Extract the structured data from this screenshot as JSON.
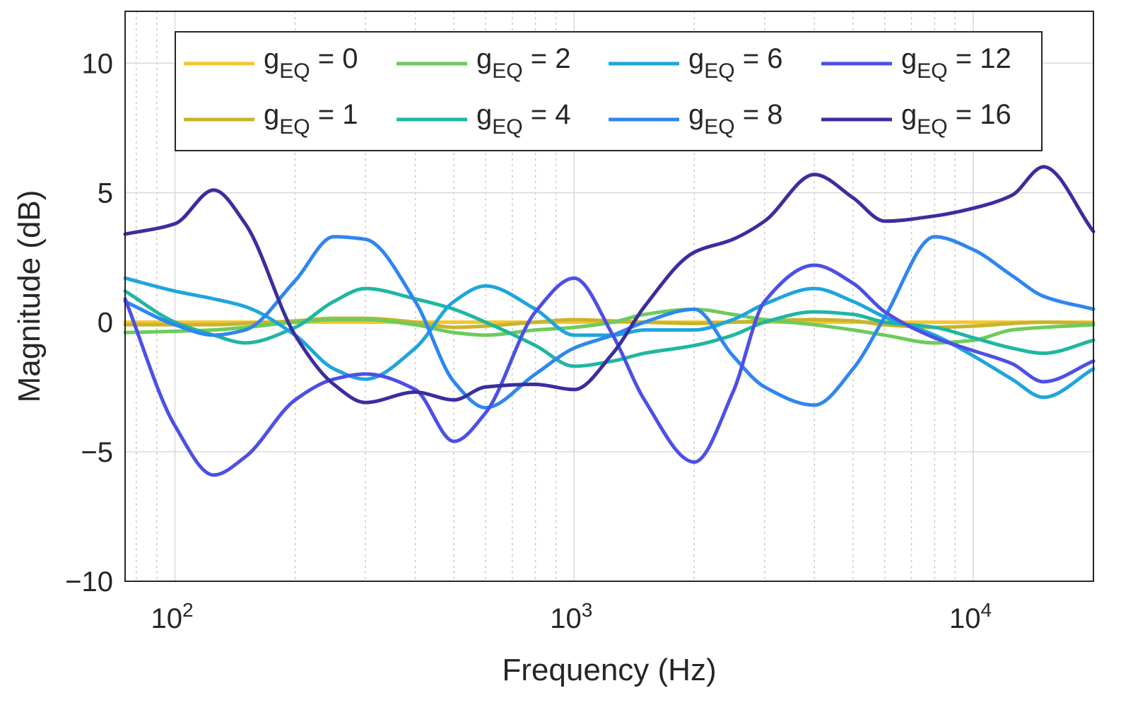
{
  "chart_data": {
    "type": "line",
    "title": "",
    "xlabel": "Frequency (Hz)",
    "ylabel": "Magnitude (dB)",
    "xscale": "log",
    "xlim": [
      75,
      20000
    ],
    "ylim": [
      -10,
      12
    ],
    "grid": true,
    "legend_position": "top",
    "x_ticks": [
      {
        "value": 100,
        "base": "10",
        "exp": "2"
      },
      {
        "value": 1000,
        "base": "10",
        "exp": "3"
      },
      {
        "value": 10000,
        "base": "10",
        "exp": "4"
      }
    ],
    "y_ticks": [
      {
        "value": 10,
        "label": "10"
      },
      {
        "value": 5,
        "label": "5"
      },
      {
        "value": 0,
        "label": "0"
      },
      {
        "value": -5,
        "label": "−5"
      },
      {
        "value": -10,
        "label": "−10"
      }
    ],
    "x": [
      75,
      100,
      125,
      150,
      200,
      250,
      300,
      400,
      500,
      600,
      800,
      1000,
      1250,
      1500,
      2000,
      2500,
      3000,
      4000,
      5000,
      6000,
      8000,
      10000,
      12500,
      15000,
      20000
    ],
    "series": [
      {
        "name": "g",
        "sub": "EQ",
        "label": " = 0",
        "color": "#F5C62E",
        "values": [
          0,
          0,
          0,
          0,
          0,
          0,
          0,
          0,
          0,
          0,
          0,
          0,
          0,
          0,
          0,
          0,
          0,
          0,
          0,
          0,
          0,
          0,
          0,
          0,
          0
        ]
      },
      {
        "name": "g",
        "sub": "EQ",
        "label": " = 1",
        "color": "#C8B42A",
        "values": [
          -0.1,
          -0.1,
          -0.1,
          -0.05,
          0.05,
          0.15,
          0.15,
          0.0,
          -0.2,
          -0.15,
          0.0,
          0.1,
          0.05,
          0.0,
          -0.05,
          0.0,
          0.05,
          0.1,
          0.05,
          -0.1,
          -0.2,
          -0.15,
          -0.05,
          0.0,
          -0.05
        ]
      },
      {
        "name": "g",
        "sub": "EQ",
        "label": " = 2",
        "color": "#6DCB5B",
        "values": [
          -0.4,
          -0.35,
          -0.3,
          -0.2,
          0.0,
          0.1,
          0.1,
          -0.1,
          -0.4,
          -0.5,
          -0.3,
          -0.2,
          0.0,
          0.3,
          0.5,
          0.3,
          0.1,
          -0.1,
          -0.3,
          -0.5,
          -0.8,
          -0.7,
          -0.3,
          -0.2,
          -0.1
        ]
      },
      {
        "name": "g",
        "sub": "EQ",
        "label": " = 4",
        "color": "#1FB6A2",
        "values": [
          1.2,
          0.0,
          -0.5,
          -0.8,
          -0.2,
          0.8,
          1.3,
          0.9,
          0.5,
          0.0,
          -0.9,
          -1.7,
          -1.5,
          -1.2,
          -0.9,
          -0.5,
          0.0,
          0.4,
          0.3,
          0.0,
          -0.2,
          -0.6,
          -1.0,
          -1.2,
          -0.7
        ]
      },
      {
        "name": "g",
        "sub": "EQ",
        "label": " = 6",
        "color": "#1EA5DC",
        "values": [
          1.7,
          1.2,
          0.9,
          0.6,
          -0.5,
          -1.8,
          -2.2,
          -1.0,
          0.8,
          1.4,
          0.5,
          -0.5,
          -0.5,
          -0.3,
          -0.3,
          0.1,
          0.7,
          1.3,
          0.8,
          0.2,
          -0.5,
          -1.3,
          -2.2,
          -2.9,
          -1.8
        ]
      },
      {
        "name": "g",
        "sub": "EQ",
        "label": " = 8",
        "color": "#2F86EE",
        "values": [
          0.8,
          -0.1,
          -0.5,
          -0.3,
          1.6,
          3.3,
          3.2,
          0.8,
          -2.3,
          -3.3,
          -2.0,
          -1.0,
          -0.5,
          0.0,
          0.5,
          -1.3,
          -2.5,
          -3.2,
          -1.8,
          0.2,
          3.3,
          2.8,
          1.8,
          1.0,
          0.5
        ]
      },
      {
        "name": "g",
        "sub": "EQ",
        "label": " = 12",
        "color": "#4D4FE6",
        "values": [
          0.9,
          -4.0,
          -5.9,
          -5.2,
          -3.0,
          -2.2,
          -2.0,
          -2.6,
          -4.6,
          -3.5,
          0.4,
          1.7,
          -0.5,
          -3.0,
          -5.4,
          -2.7,
          0.8,
          2.2,
          1.5,
          0.4,
          -0.6,
          -1.1,
          -1.6,
          -2.3,
          -1.5
        ]
      },
      {
        "name": "g",
        "sub": "EQ",
        "label": " = 16",
        "color": "#3A2E9E",
        "values": [
          3.4,
          3.8,
          5.1,
          3.8,
          -0.5,
          -2.4,
          -3.1,
          -2.7,
          -3.0,
          -2.5,
          -2.4,
          -2.6,
          -1.2,
          0.6,
          2.7,
          3.2,
          3.9,
          5.7,
          4.8,
          3.9,
          4.1,
          4.4,
          4.9,
          6.0,
          3.5
        ]
      }
    ]
  }
}
